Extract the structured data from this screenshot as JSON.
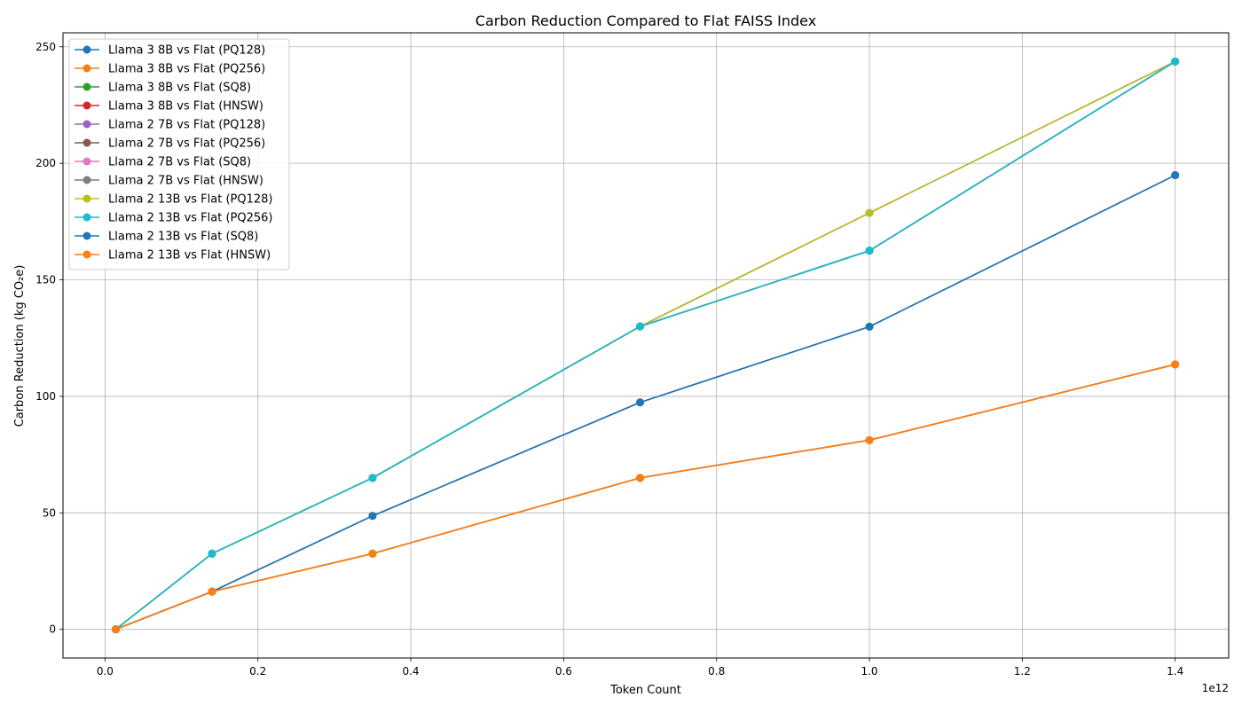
{
  "chart_data": {
    "type": "line",
    "title": "Carbon Reduction Compared to Flat FAISS Index",
    "xlabel": "Token Count",
    "ylabel": "Carbon Reduction (kg CO₂e)",
    "x_scale_label": "1e12",
    "x_ticks": [
      0.0,
      0.2,
      0.4,
      0.6,
      0.8,
      1.0,
      1.2,
      1.4
    ],
    "x_tick_labels": [
      "0.0",
      "0.2",
      "0.4",
      "0.6",
      "0.8",
      "1.0",
      "1.2",
      "1.4"
    ],
    "y_ticks": [
      0,
      50,
      100,
      150,
      200,
      250
    ],
    "y_tick_labels": [
      "0",
      "50",
      "100",
      "150",
      "200",
      "250"
    ],
    "xlim": [
      -0.055,
      1.47
    ],
    "ylim": [
      -12.3,
      256
    ],
    "grid": true,
    "legend_position": "top-left",
    "x": [
      0.014,
      0.14,
      0.35,
      0.7,
      1.0,
      1.4
    ],
    "series": [
      {
        "name": "Llama 3 8B vs Flat (PQ128)",
        "color": "#1f77b4",
        "values": [
          0,
          32.5,
          65,
          130,
          162.5,
          243.7
        ]
      },
      {
        "name": "Llama 3 8B vs Flat (PQ256)",
        "color": "#ff7f0e",
        "values": [
          0,
          32.5,
          65,
          130,
          162.5,
          243.7
        ]
      },
      {
        "name": "Llama 3 8B vs Flat (SQ8)",
        "color": "#2ca02c",
        "values": [
          0,
          16.2,
          48.7,
          97.4,
          129.9,
          194.9
        ]
      },
      {
        "name": "Llama 3 8B vs Flat (HNSW)",
        "color": "#d62728",
        "values": [
          0,
          16.2,
          32.5,
          65,
          81.2,
          113.7
        ]
      },
      {
        "name": "Llama 2 7B vs Flat (PQ128)",
        "color": "#9467bd",
        "values": [
          0,
          32.5,
          65,
          130,
          178.7,
          243.7
        ]
      },
      {
        "name": "Llama 2 7B vs Flat (PQ256)",
        "color": "#8c564b",
        "values": [
          0,
          32.5,
          65,
          130,
          162.5,
          243.7
        ]
      },
      {
        "name": "Llama 2 7B vs Flat (SQ8)",
        "color": "#e377c2",
        "values": [
          0,
          16.2,
          48.7,
          97.4,
          129.9,
          194.9
        ]
      },
      {
        "name": "Llama 2 7B vs Flat (HNSW)",
        "color": "#7f7f7f",
        "values": [
          0,
          16.2,
          32.5,
          65,
          81.2,
          113.7
        ]
      },
      {
        "name": "Llama 2 13B vs Flat (PQ128)",
        "color": "#bcbd22",
        "values": [
          0,
          32.5,
          65,
          130,
          178.7,
          243.7
        ]
      },
      {
        "name": "Llama 2 13B vs Flat (PQ256)",
        "color": "#17becf",
        "values": [
          0,
          32.5,
          65,
          130,
          162.5,
          243.7
        ]
      },
      {
        "name": "Llama 2 13B vs Flat (SQ8)",
        "color": "#1f77b4",
        "values": [
          0,
          16.2,
          48.7,
          97.4,
          129.9,
          194.9
        ]
      },
      {
        "name": "Llama 2 13B vs Flat (HNSW)",
        "color": "#ff7f0e",
        "values": [
          0,
          16.2,
          32.5,
          65,
          81.2,
          113.7
        ]
      }
    ]
  }
}
